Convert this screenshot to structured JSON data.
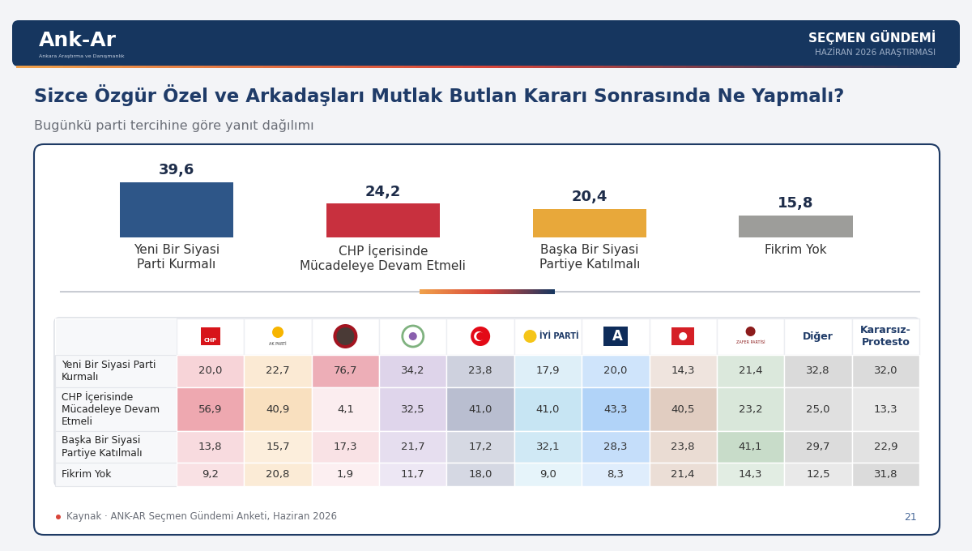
{
  "header": {
    "logo": "Ank-Ar",
    "logo_subtitle": "Ankara Araştırma ve Danışmanlık",
    "series": "SEÇMEN GÜNDEMİ",
    "edition": "HAZİRAN 2026 ARAŞTIRMASI"
  },
  "chart_data": {
    "type": "bar",
    "title": "Sizce Özgür Özel ve Arkadaşları Mutlak Butlan Kararı Sonrasında Ne Yapmalı?",
    "subtitle": "Bugünkü parti tercihine göre yanıt dağılımı",
    "categories": [
      "Yeni Bir Siyasi Parti Kurmalı",
      "CHP İçerisinde Mücadeleye Devam Etmeli",
      "Başka Bir Siyasi Partiye Katılmalı",
      "Fikrim Yok"
    ],
    "values": [
      39.6,
      24.2,
      20.4,
      15.8
    ],
    "value_labels": [
      "39,6",
      "24,2",
      "20,4",
      "15,8"
    ],
    "colors": [
      "#2e5688",
      "#c8303e",
      "#e8a83a",
      "#9d9d9a"
    ],
    "data_labels": true,
    "tick_labels": "x",
    "ylim": [
      0,
      55
    ]
  },
  "table": {
    "columns": [
      "CHP",
      "AK PARTİ",
      null,
      null,
      null,
      "İYİ PARTİ",
      "A",
      null,
      "ZAFER PARTİSİ",
      "Diğer",
      "Kararsız-Protesto"
    ],
    "rows": [
      {
        "label": "Yeni Bir Siyasi Parti Kurmalı",
        "values": [
          "20,0",
          "22,7",
          "76,7",
          "34,2",
          "23,8",
          "17,9",
          "20,0",
          "14,3",
          "21,4",
          "32,8",
          "32,0"
        ]
      },
      {
        "label": "CHP İçerisinde Mücadeleye Devam Etmeli",
        "values": [
          "56,9",
          "40,9",
          "4,1",
          "32,5",
          "41,0",
          "41,0",
          "43,3",
          "40,5",
          "23,2",
          "25,0",
          "13,3"
        ]
      },
      {
        "label": "Başka Bir Siyasi Partiye Katılmalı",
        "values": [
          "13,8",
          "15,7",
          "17,3",
          "21,7",
          "17,2",
          "32,1",
          "28,3",
          "23,8",
          "41,1",
          "29,7",
          "22,9"
        ]
      },
      {
        "label": "Fikrim Yok",
        "values": [
          "9,2",
          "20,8",
          "1,9",
          "11,7",
          "18,0",
          "9,0",
          "8,3",
          "21,4",
          "14,3",
          "12,5",
          "31,8"
        ]
      }
    ]
  },
  "footer": {
    "source": "Kaynak · ANK-AR Seçmen Gündemi Anketi, Haziran 2026",
    "page": "21"
  }
}
